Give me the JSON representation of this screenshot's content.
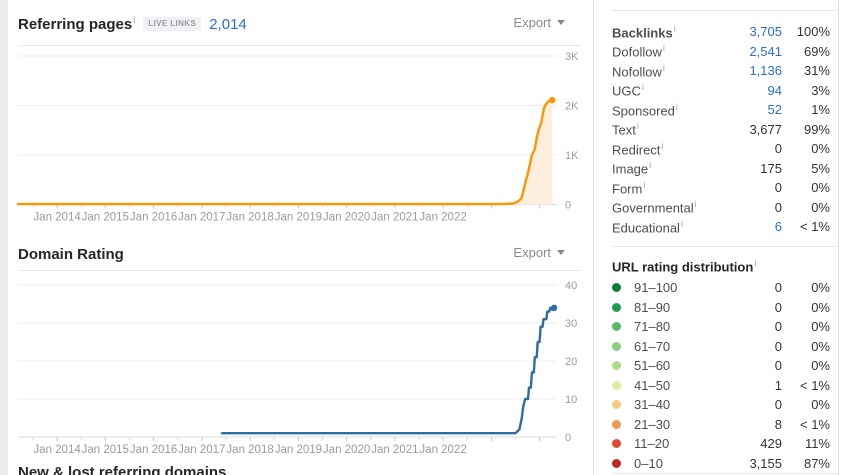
{
  "referring_pages": {
    "title": "Referring pages",
    "info": "i",
    "badge": "LIVE LINKS",
    "count": "2,014",
    "export_label": "Export"
  },
  "domain_rating": {
    "title": "Domain Rating",
    "export_label": "Export"
  },
  "next_section_title": "New & lost referring domains",
  "colors": {
    "link_blue": "#2b6cd9",
    "orange_line": "#ff9502",
    "orange_fill": "#fdeedd",
    "blue_line": "#2e6da4"
  },
  "sidebar": {
    "backlinks": [
      {
        "label": "Backlinks",
        "value": "3,705",
        "pct": "100%",
        "style": "link",
        "bold": true
      },
      {
        "label": "Dofollow",
        "value": "2,541",
        "pct": "69%",
        "style": "link"
      },
      {
        "label": "Nofollow",
        "value": "1,136",
        "pct": "31%",
        "style": "link"
      },
      {
        "label": "UGC",
        "value": "94",
        "pct": "3%",
        "style": "link"
      },
      {
        "label": "Sponsored",
        "value": "52",
        "pct": "1%",
        "style": "link"
      },
      {
        "label": "Text",
        "value": "3,677",
        "pct": "99%",
        "style": "plain"
      },
      {
        "label": "Redirect",
        "value": "0",
        "pct": "0%",
        "style": "plain"
      },
      {
        "label": "Image",
        "value": "175",
        "pct": "5%",
        "style": "plain"
      },
      {
        "label": "Form",
        "value": "0",
        "pct": "0%",
        "style": "plain"
      },
      {
        "label": "Governmental",
        "value": "0",
        "pct": "0%",
        "style": "plain"
      },
      {
        "label": "Educational",
        "value": "6",
        "pct": "< 1%",
        "style": "link"
      }
    ],
    "url_rating": {
      "title": "URL rating distribution",
      "info": "i",
      "rows": [
        {
          "range": "91–100",
          "dot_color": "#0d7a3a",
          "value": "0",
          "pct": "0%"
        },
        {
          "range": "81–90",
          "dot_color": "#229a4e",
          "value": "0",
          "pct": "0%"
        },
        {
          "range": "71–80",
          "dot_color": "#57b96b",
          "value": "0",
          "pct": "0%"
        },
        {
          "range": "61–70",
          "dot_color": "#8ccf7e",
          "value": "0",
          "pct": "0%"
        },
        {
          "range": "51–60",
          "dot_color": "#aeda8b",
          "value": "0",
          "pct": "0%"
        },
        {
          "range": "41–50",
          "dot_color": "#dfeb9f",
          "value": "1",
          "pct": "< 1%"
        },
        {
          "range": "31–40",
          "dot_color": "#f6c982",
          "value": "0",
          "pct": "0%"
        },
        {
          "range": "21–30",
          "dot_color": "#f0994e",
          "value": "8",
          "pct": "< 1%"
        },
        {
          "range": "11–20",
          "dot_color": "#e14b33",
          "value": "429",
          "pct": "11%"
        },
        {
          "range": "0–10",
          "dot_color": "#bf2a1f",
          "value": "3,155",
          "pct": "87%"
        }
      ]
    }
  },
  "chart_data": [
    {
      "type": "area",
      "title": "Referring pages",
      "x_tick_labels": [
        "Jan 2014",
        "Jan 2015",
        "Jan 2016",
        "Jan 2017",
        "Jan 2018",
        "Jan 2019",
        "Jan 2020",
        "Jan 2021",
        "Jan 2022"
      ],
      "x_tick_years": [
        2014,
        2015,
        2016,
        2017,
        2018,
        2019,
        2020,
        2021,
        2022
      ],
      "y_tick_labels": [
        "3K",
        "2K",
        "1K",
        "0"
      ],
      "y_tick_values": [
        3000,
        2000,
        1000,
        0
      ],
      "ylim": [
        0,
        3000
      ],
      "xlim": [
        2013.19,
        2024.36
      ],
      "grid": true,
      "line_color": "#ff9502",
      "fill_color": "#fdeedd",
      "end_dot": true,
      "series": [
        {
          "name": "Referring pages",
          "points": [
            [
              2013.19,
              8
            ],
            [
              2023.2,
              8
            ],
            [
              2023.45,
              20
            ],
            [
              2023.55,
              60
            ],
            [
              2023.62,
              120
            ],
            [
              2023.67,
              300
            ],
            [
              2023.72,
              500
            ],
            [
              2023.76,
              640
            ],
            [
              2023.8,
              820
            ],
            [
              2023.84,
              1000
            ],
            [
              2023.87,
              1060
            ],
            [
              2023.9,
              1120
            ],
            [
              2023.93,
              1300
            ],
            [
              2023.97,
              1480
            ],
            [
              2024.0,
              1560
            ],
            [
              2024.03,
              1640
            ],
            [
              2024.06,
              1790
            ],
            [
              2024.09,
              1940
            ],
            [
              2024.12,
              2010
            ],
            [
              2024.16,
              2060
            ],
            [
              2024.2,
              2095
            ],
            [
              2024.26,
              2110
            ]
          ]
        }
      ]
    },
    {
      "type": "line",
      "title": "Domain Rating",
      "x_tick_labels": [
        "Jan 2014",
        "Jan 2015",
        "Jan 2016",
        "Jan 2017",
        "Jan 2018",
        "Jan 2019",
        "Jan 2020",
        "Jan 2021",
        "Jan 2022"
      ],
      "x_tick_years": [
        2014,
        2015,
        2016,
        2017,
        2018,
        2019,
        2020,
        2021,
        2022
      ],
      "y_tick_labels": [
        "40",
        "30",
        "20",
        "10",
        "0"
      ],
      "y_tick_values": [
        40,
        30,
        20,
        10,
        0
      ],
      "ylim": [
        0,
        40
      ],
      "xlim": [
        2013.19,
        2024.36
      ],
      "grid": true,
      "line_color": "#2e6da4",
      "fill_color": null,
      "end_dot": true,
      "series": [
        {
          "name": "Domain Rating",
          "points": [
            [
              2017.42,
              1
            ],
            [
              2023.5,
              1
            ],
            [
              2023.58,
              2
            ],
            [
              2023.63,
              5
            ],
            [
              2023.66,
              8
            ],
            [
              2023.7,
              10
            ],
            [
              2023.76,
              10
            ],
            [
              2023.78,
              13
            ],
            [
              2023.82,
              13
            ],
            [
              2023.84,
              17
            ],
            [
              2023.88,
              17
            ],
            [
              2023.9,
              21
            ],
            [
              2023.94,
              21
            ],
            [
              2023.96,
              25
            ],
            [
              2024.0,
              25
            ],
            [
              2024.02,
              29
            ],
            [
              2024.06,
              29
            ],
            [
              2024.08,
              31
            ],
            [
              2024.14,
              31
            ],
            [
              2024.16,
              33
            ],
            [
              2024.2,
              33
            ],
            [
              2024.22,
              34
            ],
            [
              2024.26,
              33.5
            ],
            [
              2024.3,
              34
            ]
          ]
        }
      ]
    }
  ]
}
